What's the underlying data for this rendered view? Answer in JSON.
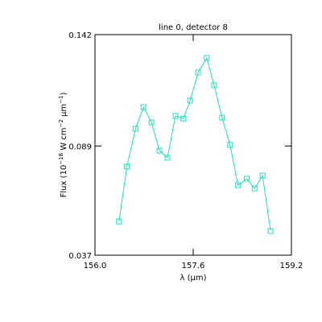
{
  "chart_data": {
    "type": "line",
    "title": "line 0, detector 8",
    "xlabel": "λ (μm)",
    "ylabel": [
      "Flux (10",
      "−18",
      " W cm",
      "−2",
      " μm",
      "−1",
      ")"
    ],
    "x": [
      156.39,
      156.52,
      156.66,
      156.79,
      156.92,
      157.05,
      157.18,
      157.31,
      157.44,
      157.55,
      157.68,
      157.82,
      157.94,
      158.07,
      158.2,
      158.33,
      158.47,
      158.6,
      158.73,
      158.86
    ],
    "series": [
      {
        "color": "#20e0b8",
        "marker": "square",
        "values": [
          0.0531,
          0.0792,
          0.0972,
          0.1075,
          0.1002,
          0.0868,
          0.0834,
          0.1033,
          0.1021,
          0.1106,
          0.124,
          0.1309,
          0.1179,
          0.1025,
          0.0895,
          0.0703,
          0.0734,
          0.0688,
          0.0749,
          0.0485
        ]
      }
    ],
    "xlim": [
      156.0,
      159.2
    ],
    "xticks": [
      {
        "value": 156.0,
        "label": "156.0"
      },
      157.6,
      159.2
    ],
    "ylim": [
      0.037,
      0.142
    ],
    "yticks": [
      0.037,
      0.089,
      0.142
    ]
  }
}
